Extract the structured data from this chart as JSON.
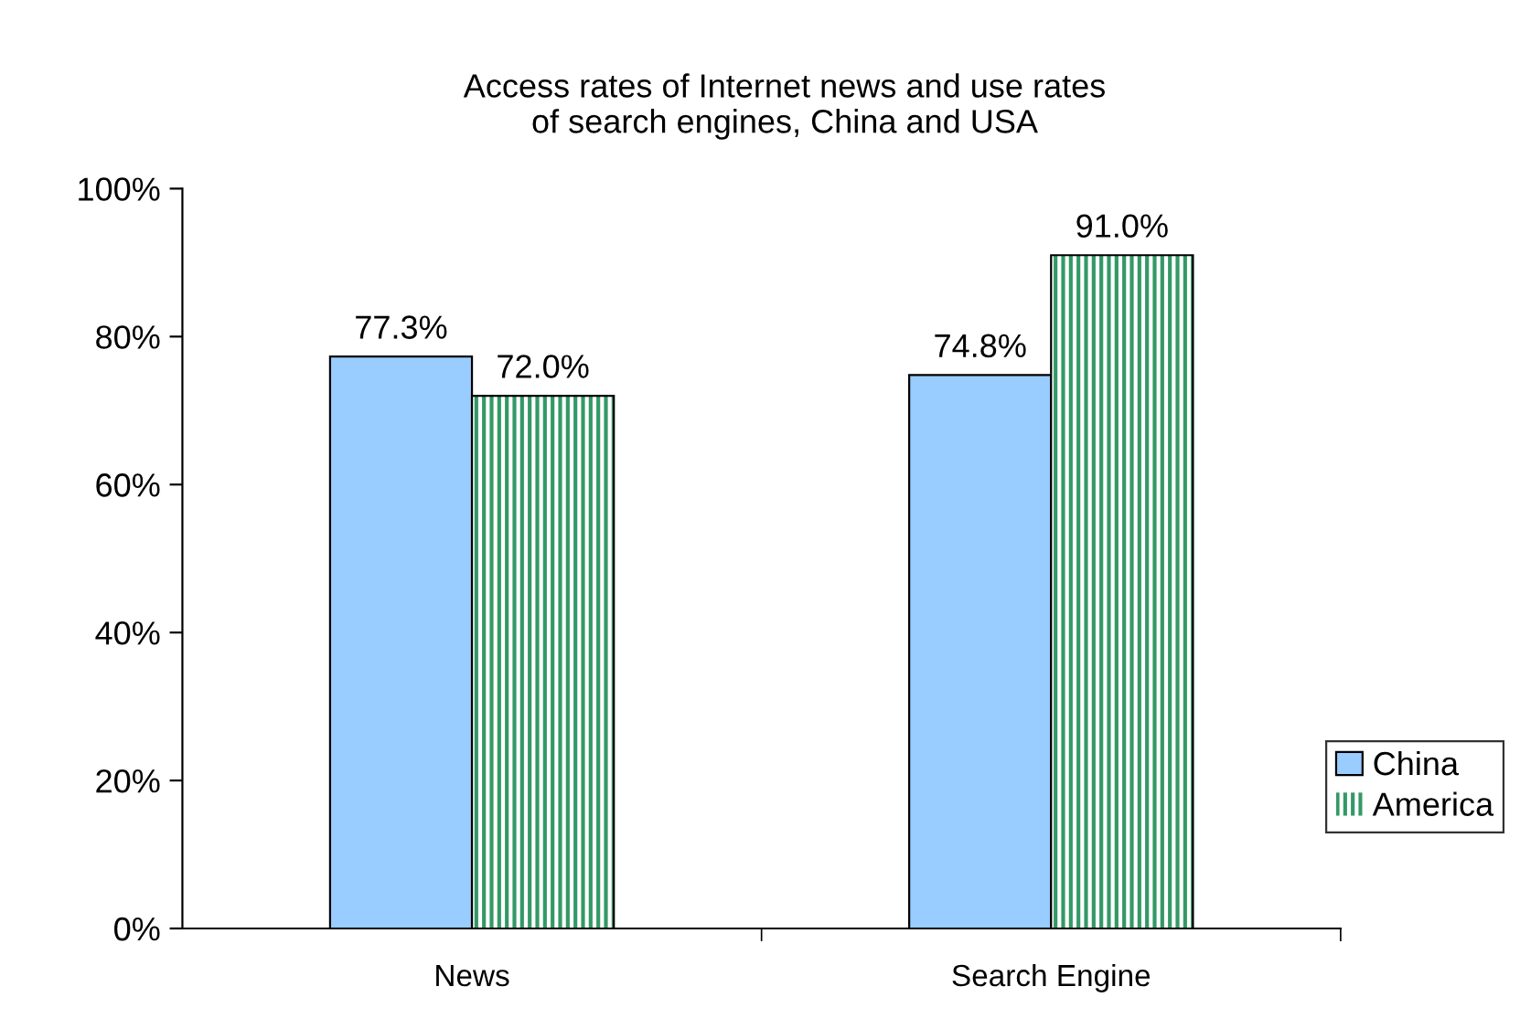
{
  "chart_data": {
    "type": "bar",
    "title": "Access rates of Internet news and use rates of search engines, China and USA",
    "categories": [
      "News",
      "Search Engine"
    ],
    "series": [
      {
        "name": "China",
        "color": "#99ccff",
        "values": [
          77.3,
          74.8
        ],
        "value_labels": [
          "77.3%",
          "74.8%"
        ]
      },
      {
        "name": "America",
        "color": "#339966",
        "values": [
          72.0,
          91.0
        ],
        "value_labels": [
          "72.0%",
          "91.0%"
        ]
      }
    ],
    "ylim": [
      0,
      100
    ],
    "yticks": [
      {
        "value": 0,
        "label": "0%"
      },
      {
        "value": 20,
        "label": "20%"
      },
      {
        "value": 40,
        "label": "40%"
      },
      {
        "value": 60,
        "label": "60%"
      },
      {
        "value": 80,
        "label": "80%"
      },
      {
        "value": 100,
        "label": "100%"
      }
    ],
    "grid": false,
    "legend": "right"
  }
}
